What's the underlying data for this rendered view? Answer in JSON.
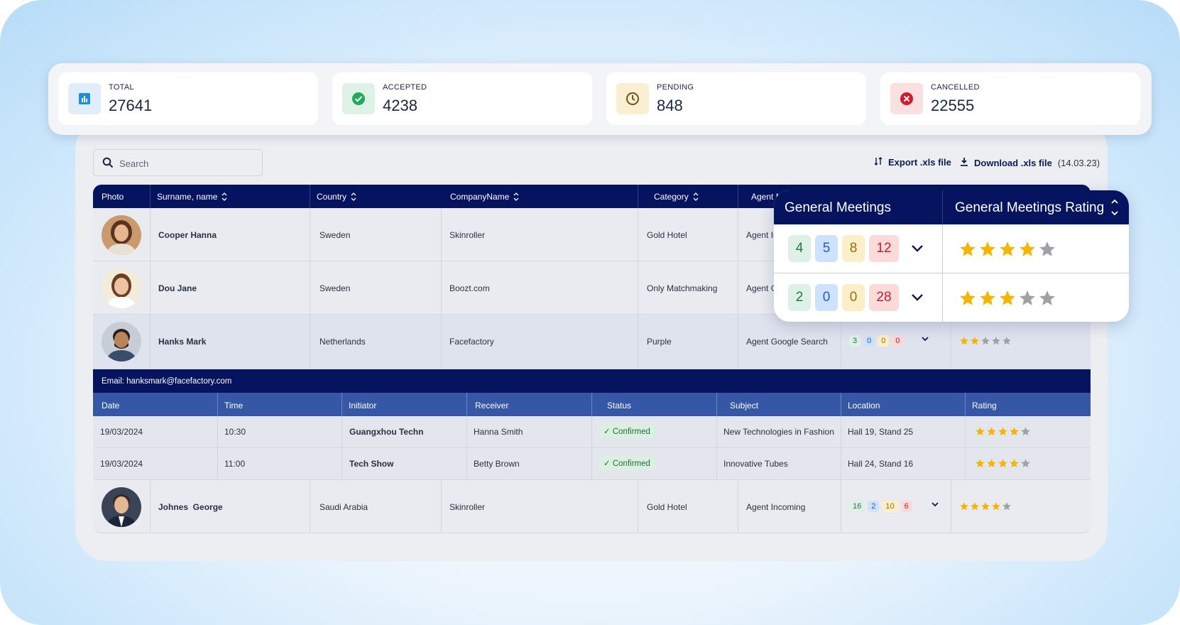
{
  "stats": [
    {
      "label": "TOTAL",
      "value": "27641",
      "color": "#e1eefa",
      "icon": "bar-chart-icon"
    },
    {
      "label": "ACCEPTED",
      "value": "4238",
      "color": "#dff2e7",
      "icon": "check-circle-icon"
    },
    {
      "label": "PENDING",
      "value": "848",
      "color": "#fbefd3",
      "icon": "clock-icon"
    },
    {
      "label": "CANCELLED",
      "value": "22555",
      "color": "#fbe0e2",
      "icon": "x-circle-icon"
    }
  ],
  "toolbar": {
    "search_placeholder": "Search",
    "export_label": "Export .xls file",
    "download_label": "Download .xls file",
    "download_date": "(14.03.23)"
  },
  "table": {
    "headers": [
      "Photo",
      "Surname, name",
      "Country",
      "CompanyName",
      "Category",
      "Agent N"
    ],
    "rows": [
      {
        "name": "Cooper Hanna",
        "country": "Sweden",
        "company": "Skinroller",
        "category": "Gold Hotel",
        "agent": "Agent Ir"
      },
      {
        "name": "Dou Jane",
        "country": "Sweden",
        "company": "Boozt.com",
        "category": "Only Matchmaking",
        "agent": "Agent G"
      },
      {
        "name": "Hanks Mark",
        "country": "Netherlands",
        "company": "Facefactory",
        "category": "Purple",
        "agent": "Agent Google Search",
        "meetings": [
          "3",
          "0",
          "0",
          "0"
        ],
        "rating": 2
      },
      {
        "name": "Johnes  George",
        "country": "Saudi Arabia",
        "company": "Skinroller",
        "category": "Gold Hotel",
        "agent": "Agent Incoming",
        "meetings": [
          "16",
          "2",
          "10",
          "6"
        ],
        "rating": 4
      }
    ]
  },
  "detail": {
    "email": "Email: hanksmark@facefactory.com",
    "headers": [
      "Date",
      "Time",
      "Initiator",
      "Receiver",
      "Status",
      "Subject",
      "Location",
      "Rating"
    ],
    "rows": [
      {
        "date": "19/03/2024",
        "time": "10:30",
        "initiator": "Guangxhou Techn",
        "receiver": "Hanna Smith",
        "status": "Confirmed",
        "subject": "New Technologies in Fashion",
        "location": "Hall 19, Stand 25",
        "rating": 4
      },
      {
        "date": "19/03/2024",
        "time": "11:00",
        "initiator": "Tech Show",
        "receiver": "Betty Brown",
        "status": "Confirmed",
        "subject": "Innovative Tubes",
        "location": "Hall 24, Stand 16",
        "rating": 4
      }
    ]
  },
  "popup": {
    "title_meetings": "General Meetings",
    "title_rating": "General Meetings Rating",
    "rows": [
      {
        "meetings": [
          "4",
          "5",
          "8",
          "12"
        ],
        "rating": 4
      },
      {
        "meetings": [
          "2",
          "0",
          "0",
          "28"
        ],
        "rating": 3
      }
    ]
  },
  "colors": {
    "navy": "#06135f",
    "subheader": "#3557a6",
    "star": "#f5b400",
    "star_empty": "#a0a0a6"
  }
}
